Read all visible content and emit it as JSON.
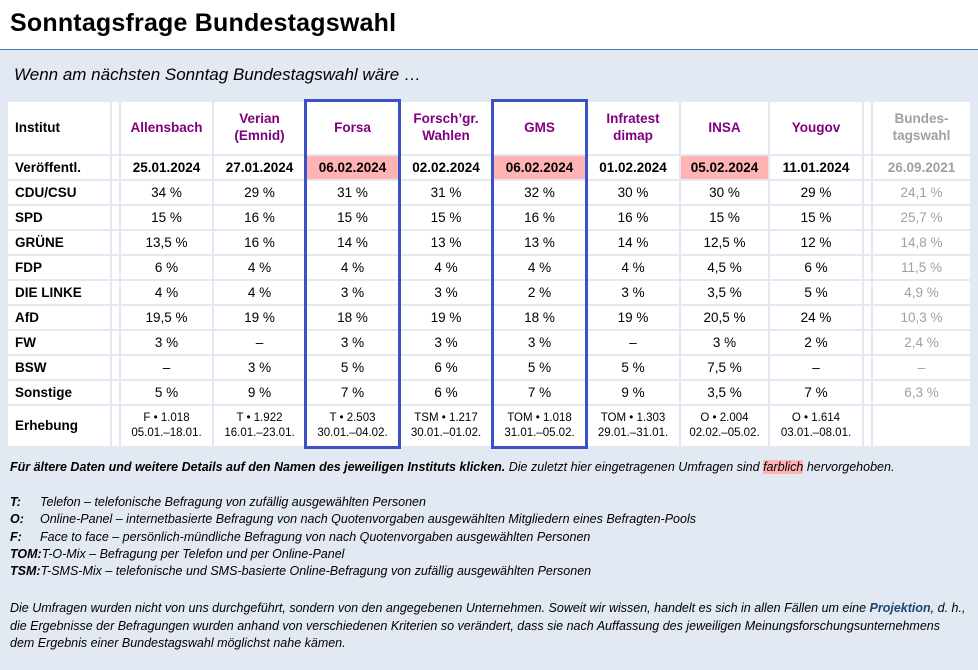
{
  "page": {
    "title": "Sonntagsfrage Bundestagswahl",
    "subtitle": "Wenn am nächsten Sonntag Bundestagswahl wäre …"
  },
  "colors": {
    "page_bg": "#e2e9f2",
    "link_purple": "#800080",
    "muted_gray": "#a0a0a0",
    "highlight_pink": "#ffb3b3",
    "selection_blue": "#3c50c8",
    "rule_blue": "#4a7ab5"
  },
  "table": {
    "corner_label": "Institut",
    "columns": [
      {
        "label": "Allensbach"
      },
      {
        "label": "Verian\n(Emnid)"
      },
      {
        "label": "Forsa"
      },
      {
        "label": "Forsch’gr.\nWahlen"
      },
      {
        "label": "GMS"
      },
      {
        "label": "Infratest\ndimap"
      },
      {
        "label": "INSA"
      },
      {
        "label": "Yougov"
      },
      {
        "label": "Bundes-\ntagswahl"
      }
    ],
    "published": {
      "label": "Veröffentl.",
      "values": [
        "25.01.2024",
        "27.01.2024",
        "06.02.2024",
        "02.02.2024",
        "06.02.2024",
        "01.02.2024",
        "05.02.2024",
        "11.01.2024",
        "26.09.2021"
      ]
    },
    "parties": [
      {
        "label": "CDU/CSU",
        "values": [
          "34 %",
          "29 %",
          "31 %",
          "31 %",
          "32 %",
          "30 %",
          "30 %",
          "29 %",
          "24,1 %"
        ]
      },
      {
        "label": "SPD",
        "values": [
          "15 %",
          "16 %",
          "15 %",
          "15 %",
          "16 %",
          "16 %",
          "15 %",
          "15 %",
          "25,7 %"
        ]
      },
      {
        "label": "GRÜNE",
        "values": [
          "13,5 %",
          "16 %",
          "14 %",
          "13 %",
          "13 %",
          "14 %",
          "12,5 %",
          "12 %",
          "14,8 %"
        ]
      },
      {
        "label": "FDP",
        "values": [
          "6 %",
          "4 %",
          "4 %",
          "4 %",
          "4 %",
          "4 %",
          "4,5 %",
          "6 %",
          "11,5 %"
        ]
      },
      {
        "label": "DIE LINKE",
        "values": [
          "4 %",
          "4 %",
          "3 %",
          "3 %",
          "2 %",
          "3 %",
          "3,5 %",
          "5 %",
          "4,9 %"
        ]
      },
      {
        "label": "AfD",
        "values": [
          "19,5 %",
          "19 %",
          "18 %",
          "19 %",
          "18 %",
          "19 %",
          "20,5 %",
          "24 %",
          "10,3 %"
        ]
      },
      {
        "label": "FW",
        "values": [
          "3 %",
          "–",
          "3 %",
          "3 %",
          "3 %",
          "–",
          "3 %",
          "2 %",
          "2,4 %"
        ]
      },
      {
        "label": "BSW",
        "values": [
          "–",
          "3 %",
          "5 %",
          "6 %",
          "5 %",
          "5 %",
          "7,5 %",
          "–",
          "–"
        ]
      },
      {
        "label": "Sonstige",
        "values": [
          "5 %",
          "9 %",
          "7 %",
          "6 %",
          "7 %",
          "9 %",
          "3,5 %",
          "7 %",
          "6,3 %"
        ]
      }
    ],
    "erhebung": {
      "label": "Erhebung",
      "values": [
        "F • 1.018\n05.01.–18.01.",
        "T • 1.922\n16.01.–23.01.",
        "T • 2.503\n30.01.–04.02.",
        "TSM • 1.217\n30.01.–01.02.",
        "TOM • 1.018\n31.01.–05.02.",
        "TOM • 1.303\n29.01.–31.01.",
        "O • 2.004\n02.02.–05.02.",
        "O • 1.614\n03.01.–08.01.",
        ""
      ]
    }
  },
  "footer": {
    "note_bold": "Für ältere Daten und weitere Details auf den Namen des jeweiligen Instituts klicken.",
    "note_mid": " Die zuletzt hier eingetragenen Umfragen sind ",
    "note_highlight": "farblich",
    "note_end": " hervorgehoben."
  },
  "legend": {
    "items": [
      {
        "term": "T:",
        "text": "Telefon – telefonische Befragung von zufällig ausgewählten Personen"
      },
      {
        "term": "O:",
        "text": "Online-Panel – internetbasierte Befragung von nach Quotenvorgaben ausgewählten Mitgliedern eines Befragten-Pools"
      },
      {
        "term": "F:",
        "text": "Face to face – persönlich-mündliche Befragung von nach Quotenvorgaben ausgewählten Personen"
      },
      {
        "term": "TOM:",
        "text": "T-O-Mix – Befragung per Telefon und per Online-Panel"
      },
      {
        "term": "TSM:",
        "text": "T-SMS-Mix – telefonische und SMS-basierte Online-Befragung von zufällig ausgewählten Personen"
      }
    ]
  },
  "disclaimer": {
    "part1": "Die Umfragen wurden nicht von uns durchgeführt, sondern von den angegebenen Unternehmen. Soweit wir wissen, handelt es sich in allen Fällen um eine ",
    "highlight": "Projektion",
    "part2": ", d. h., die Ergebnisse der Befragungen wurden anhand von verschiedenen Kriterien so verändert, dass sie nach Auffassung des jeweiligen Meinungsforschungsunternehmens dem Ergebnis einer Bundestagswahl möglichst nahe kämen."
  }
}
